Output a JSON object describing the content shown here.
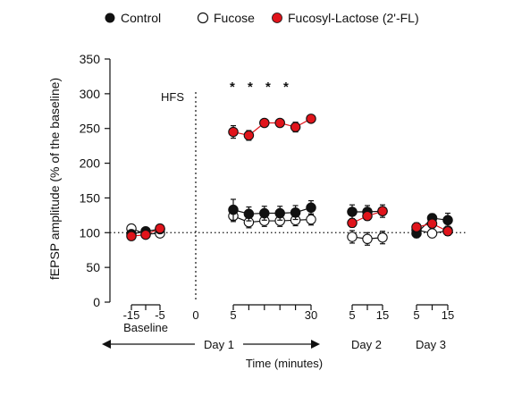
{
  "chart_data": {
    "type": "scatter",
    "ylabel": "fEPSP amplitude (% of the baseline)",
    "xlabel": "Time (minutes)",
    "ylim": [
      0,
      350
    ],
    "y_ticks": [
      0,
      50,
      100,
      150,
      200,
      250,
      300,
      350
    ],
    "baseline_reference": 100,
    "legend": {
      "placement": "top",
      "items": [
        {
          "label": "Control",
          "marker": "filled-black"
        },
        {
          "label": "Fucose",
          "marker": "open"
        },
        {
          "label": "Fucosyl-Lactose (2'-FL)",
          "marker": "filled-red"
        }
      ]
    },
    "annotations": {
      "hfs_label": "HFS",
      "significance": "* * * *",
      "baseline_label": "Baseline",
      "day1_label": "Day 1",
      "day2_label": "Day 2",
      "day3_label": "Day 3"
    },
    "colors": {
      "control": "#111111",
      "fucose": "#ffffff",
      "fl": "#e0141b",
      "axis": "#111111"
    },
    "panels": [
      {
        "name": "Baseline",
        "x": [
          -15,
          -10,
          -5
        ],
        "tick_labels": [
          "-15",
          "",
          "-5"
        ],
        "series": [
          {
            "key": "control",
            "y": [
              98,
              102,
              105
            ],
            "err": [
              4,
              4,
              4
            ]
          },
          {
            "key": "fucose",
            "y": [
              106,
              98,
              99
            ],
            "err": [
              4,
              4,
              4
            ]
          },
          {
            "key": "fl",
            "y": [
              95,
              97,
              106
            ],
            "err": [
              4,
              4,
              4
            ]
          }
        ]
      },
      {
        "name": "HFS",
        "x": [
          0
        ],
        "tick_labels": [
          "0"
        ],
        "series": []
      },
      {
        "name": "Day 1",
        "x": [
          5,
          10,
          15,
          20,
          25,
          30
        ],
        "tick_labels": [
          "5",
          "",
          "",
          "",
          "",
          "30"
        ],
        "series": [
          {
            "key": "control",
            "y": [
              133,
              127,
              128,
              128,
              129,
              136
            ],
            "err": [
              15,
              10,
              10,
              10,
              10,
              10
            ]
          },
          {
            "key": "fucose",
            "y": [
              124,
              115,
              117,
              117,
              118,
              119
            ],
            "err": [
              8,
              8,
              8,
              8,
              8,
              8
            ]
          },
          {
            "key": "fl",
            "y": [
              245,
              240,
              258,
              258,
              252,
              264
            ],
            "err": [
              9,
              7,
              5,
              5,
              7,
              5
            ]
          }
        ]
      },
      {
        "name": "Day 2",
        "x": [
          5,
          10,
          15
        ],
        "tick_labels": [
          "5",
          "",
          "15"
        ],
        "series": [
          {
            "key": "control",
            "y": [
              130,
              130,
              131
            ],
            "err": [
              10,
              9,
              9
            ]
          },
          {
            "key": "fucose",
            "y": [
              94,
              91,
              93
            ],
            "err": [
              9,
              9,
              9
            ]
          },
          {
            "key": "fl",
            "y": [
              114,
              124,
              131
            ],
            "err": [
              6,
              6,
              6
            ]
          }
        ]
      },
      {
        "name": "Day 3",
        "x": [
          5,
          10,
          15
        ],
        "tick_labels": [
          "5",
          "",
          "15"
        ],
        "series": [
          {
            "key": "control",
            "y": [
              99,
              121,
              118
            ],
            "err": [
              6,
              6,
              10
            ]
          },
          {
            "key": "fucose",
            "y": [
              104,
              99,
              103
            ],
            "err": [
              6,
              6,
              6
            ]
          },
          {
            "key": "fl",
            "y": [
              108,
              113,
              102
            ],
            "err": [
              6,
              6,
              6
            ]
          }
        ]
      }
    ]
  }
}
